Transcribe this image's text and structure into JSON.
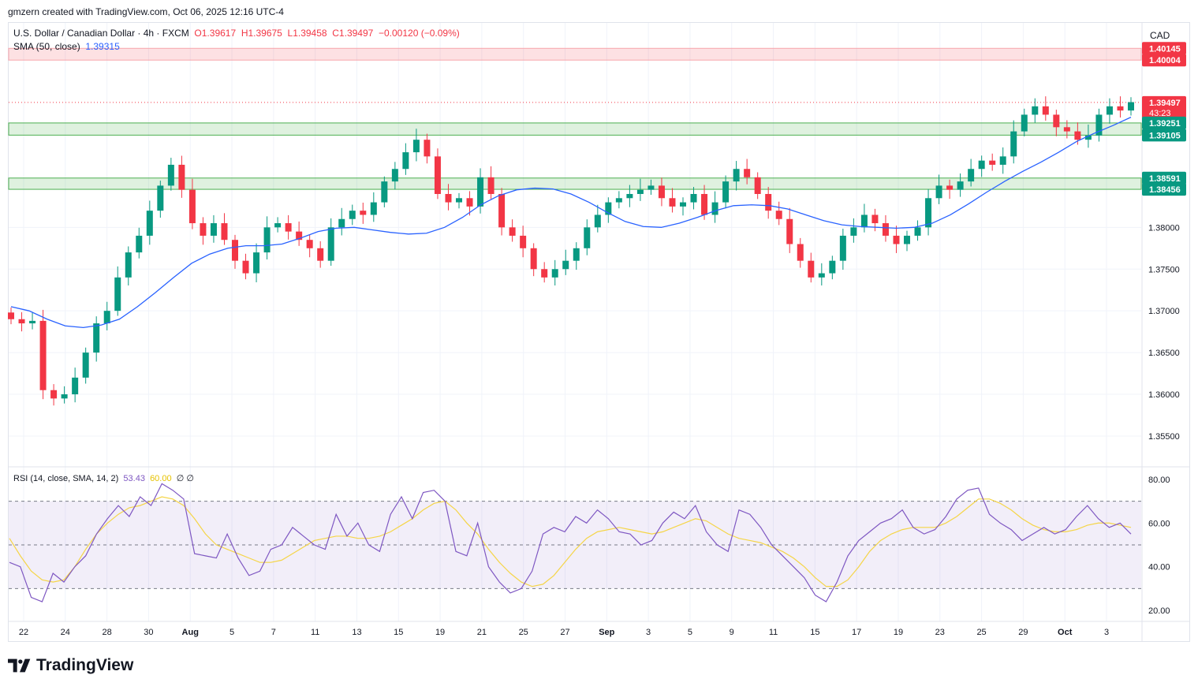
{
  "header": {
    "created_by": "gmzern created with TradingView.com, Oct 06, 2025 12:16 UTC-4"
  },
  "symbol": {
    "title": "U.S. Dollar / Canadian Dollar · 4h · FXCM",
    "open": "O1.39617",
    "high": "H1.39675",
    "low": "L1.39458",
    "close": "C1.39497",
    "change": "−0.00120 (−0.09%)"
  },
  "sma_legend": {
    "label": "SMA (50, close)",
    "value": "1.39315"
  },
  "rsi_legend": {
    "label": "RSI (14, close, SMA, 14, 2)",
    "value1": "53.43",
    "value2": "60.00",
    "extra": "∅ ∅"
  },
  "currency": "CAD",
  "brand": "TradingView",
  "colors": {
    "up": "#089981",
    "down": "#f23645",
    "sma": "#2962ff",
    "rsi": "#7e57c2",
    "rsi_ma": "#f5d547"
  },
  "chart_data": {
    "type": "candlestick",
    "price_ticks": [
      "1.38000",
      "1.37500",
      "1.37000",
      "1.36500",
      "1.36000",
      "1.35500"
    ],
    "price_tick_values": [
      1.38,
      1.375,
      1.37,
      1.365,
      1.36,
      1.355
    ],
    "price_range": [
      1.3515,
      1.4045
    ],
    "price_labels": [
      {
        "text": "1.40145",
        "value": 1.40145,
        "kind": "resistance"
      },
      {
        "text": "1.40004",
        "value": 1.40004,
        "kind": "resistance"
      },
      {
        "text": "1.39497",
        "value": 1.39497,
        "kind": "last",
        "sub": "43:23"
      },
      {
        "text": "1.39251",
        "value": 1.39251,
        "kind": "support"
      },
      {
        "text": "1.39105",
        "value": 1.39105,
        "kind": "support"
      },
      {
        "text": "1.38591",
        "value": 1.38591,
        "kind": "support"
      },
      {
        "text": "1.38456",
        "value": 1.38456,
        "kind": "support"
      }
    ],
    "zones": [
      {
        "from": 1.40004,
        "to": 1.40145,
        "kind": "resistance"
      },
      {
        "from": 1.39105,
        "to": 1.39251,
        "kind": "support"
      },
      {
        "from": 1.38456,
        "to": 1.38591,
        "kind": "support"
      }
    ],
    "x_ticks": [
      "22",
      "24",
      "28",
      "30",
      "Aug",
      "5",
      "7",
      "11",
      "13",
      "15",
      "19",
      "21",
      "25",
      "27",
      "Sep",
      "3",
      "5",
      "9",
      "11",
      "15",
      "17",
      "19",
      "23",
      "25",
      "29",
      "Oct",
      "3"
    ],
    "close_series": [
      1.369,
      1.3685,
      1.3688,
      1.3605,
      1.3595,
      1.36,
      1.362,
      1.365,
      1.3685,
      1.37,
      1.374,
      1.377,
      1.379,
      1.382,
      1.385,
      1.3875,
      1.3845,
      1.3805,
      1.379,
      1.3805,
      1.3785,
      1.376,
      1.3745,
      1.377,
      1.38,
      1.3805,
      1.3795,
      1.3785,
      1.3775,
      1.376,
      1.38,
      1.381,
      1.382,
      1.3815,
      1.383,
      1.3855,
      1.387,
      1.389,
      1.3905,
      1.3885,
      1.384,
      1.383,
      1.3835,
      1.3825,
      1.386,
      1.384,
      1.38,
      1.379,
      1.3775,
      1.375,
      1.374,
      1.375,
      1.376,
      1.3775,
      1.38,
      1.3815,
      1.383,
      1.3835,
      1.384,
      1.3845,
      1.385,
      1.3835,
      1.3825,
      1.383,
      1.384,
      1.3815,
      1.383,
      1.3855,
      1.387,
      1.386,
      1.384,
      1.382,
      1.381,
      1.378,
      1.376,
      1.374,
      1.3745,
      1.376,
      1.379,
      1.38,
      1.3815,
      1.3805,
      1.379,
      1.378,
      1.379,
      1.38,
      1.3835,
      1.385,
      1.3845,
      1.3855,
      1.387,
      1.388,
      1.3875,
      1.3885,
      1.3915,
      1.3935,
      1.3945,
      1.3935,
      1.392,
      1.3915,
      1.3905,
      1.391,
      1.3935,
      1.3945,
      1.394,
      1.395
    ],
    "sma_series": [
      1.3705,
      1.37,
      1.369,
      1.3682,
      1.368,
      1.3683,
      1.369,
      1.3705,
      1.3722,
      1.374,
      1.3757,
      1.3768,
      1.3775,
      1.3778,
      1.3778,
      1.378,
      1.3787,
      1.3795,
      1.3799,
      1.38,
      1.3797,
      1.3794,
      1.3792,
      1.3793,
      1.38,
      1.3812,
      1.3827,
      1.3838,
      1.3845,
      1.3847,
      1.3846,
      1.384,
      1.383,
      1.3818,
      1.3807,
      1.3801,
      1.38,
      1.3805,
      1.3812,
      1.382,
      1.3826,
      1.3827,
      1.3826,
      1.3822,
      1.3815,
      1.3808,
      1.3803,
      1.3801,
      1.38,
      1.3799,
      1.38,
      1.3805,
      1.3815,
      1.3828,
      1.3842,
      1.3855,
      1.3867,
      1.3878,
      1.389,
      1.3903,
      1.3913,
      1.3922,
      1.3932
    ],
    "rsi_ticks": [
      "80.00",
      "60.00",
      "40.00",
      "20.00"
    ],
    "rsi_tick_values": [
      80,
      60,
      40,
      20
    ],
    "rsi_bands": [
      70,
      50,
      30
    ],
    "rsi_series": [
      42,
      40,
      26,
      24,
      37,
      33,
      40,
      45,
      55,
      62,
      68,
      63,
      72,
      68,
      78,
      75,
      71,
      46,
      45,
      44,
      55,
      44,
      36,
      38,
      48,
      50,
      58,
      54,
      50,
      48,
      64,
      54,
      60,
      50,
      47,
      64,
      72,
      62,
      74,
      75,
      70,
      47,
      45,
      60,
      40,
      33,
      28,
      30,
      38,
      55,
      58,
      56,
      63,
      60,
      66,
      62,
      56,
      55,
      50,
      52,
      60,
      65,
      62,
      68,
      56,
      50,
      47,
      66,
      64,
      58,
      50,
      45,
      40,
      35,
      27,
      24,
      33,
      45,
      52,
      56,
      60,
      62,
      66,
      58,
      55,
      57,
      63,
      71,
      75,
      76,
      64,
      60,
      57,
      52,
      55,
      58,
      55,
      57,
      63,
      68,
      62,
      58,
      60,
      55
    ],
    "rsi_ma_series": [
      53,
      45,
      38,
      34,
      33,
      34,
      40,
      48,
      55,
      60,
      64,
      67,
      68,
      70,
      72,
      71,
      68,
      62,
      55,
      50,
      48,
      46,
      44,
      42,
      42,
      43,
      46,
      49,
      52,
      53,
      54,
      54,
      53,
      53,
      54,
      56,
      59,
      62,
      66,
      69,
      70,
      66,
      60,
      55,
      48,
      42,
      37,
      33,
      31,
      32,
      36,
      42,
      48,
      53,
      56,
      57,
      58,
      57,
      56,
      55,
      56,
      58,
      60,
      62,
      61,
      58,
      55,
      53,
      52,
      51,
      49,
      47,
      44,
      40,
      35,
      31,
      31,
      34,
      40,
      47,
      52,
      55,
      57,
      58,
      58,
      58,
      60,
      63,
      67,
      71,
      71,
      69,
      66,
      62,
      59,
      57,
      56,
      56,
      57,
      59,
      60,
      60,
      59,
      58
    ]
  }
}
